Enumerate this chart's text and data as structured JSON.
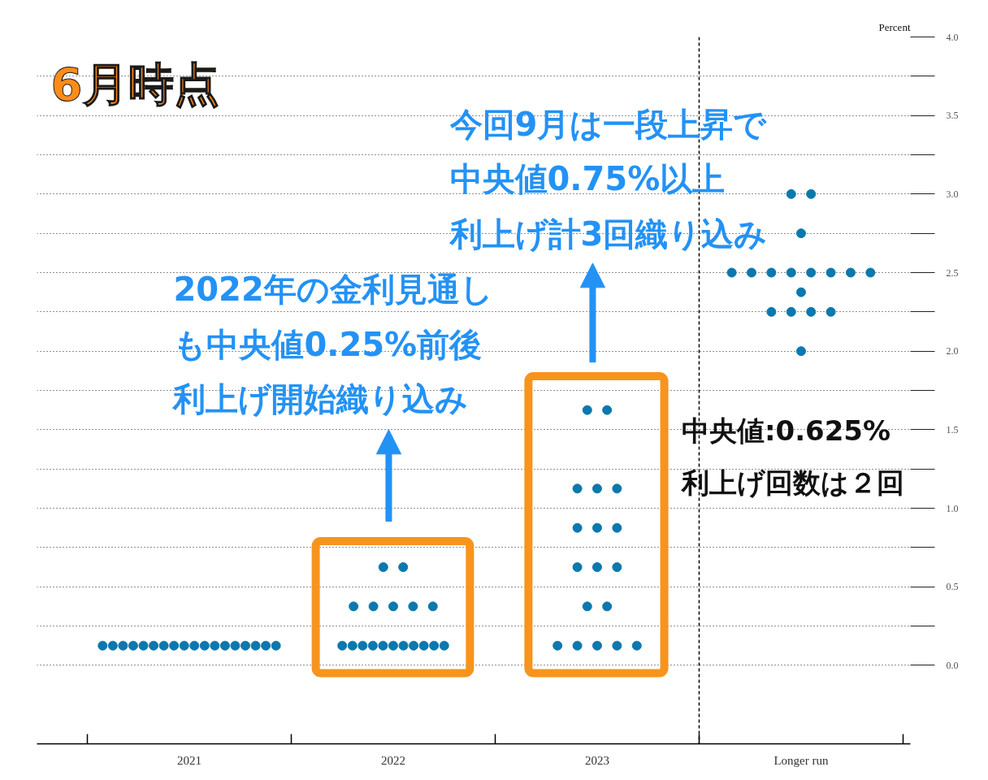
{
  "chart_data": {
    "type": "scatter",
    "annotations": [
      "6月時点",
      "2022年の金利見通しも中央値0.25%前後利上げ開始織り込み",
      "今回9月は一段上昇で中央値0.75%以上利上げ計3回織り込み",
      "中央値:0.625%利上げ回数は２回"
    ],
    "ylabel": "Percent",
    "categories": [
      "2021",
      "2022",
      "2023",
      "Longer run"
    ],
    "series": [
      {
        "color": "#0b78ae",
        "values": [
          0.125,
          0.125,
          0.125,
          2.0
        ]
      },
      {
        "color": "#0b78ae",
        "values": [
          0.125,
          0.125,
          0.125,
          2.25
        ]
      },
      {
        "color": "#0b78ae",
        "values": [
          0.125,
          0.125,
          0.125,
          2.25
        ]
      },
      {
        "color": "#0b78ae",
        "values": [
          0.125,
          0.125,
          0.125,
          2.25
        ]
      },
      {
        "color": "#0b78ae",
        "values": [
          0.125,
          0.125,
          0.125,
          2.25
        ]
      },
      {
        "color": "#0b78ae",
        "values": [
          0.125,
          0.125,
          0.375,
          2.375
        ]
      },
      {
        "color": "#0b78ae",
        "values": [
          0.125,
          0.125,
          0.375,
          2.5
        ]
      },
      {
        "color": "#0b78ae",
        "values": [
          0.125,
          0.125,
          0.625,
          2.5
        ]
      },
      {
        "color": "#0b78ae",
        "values": [
          0.125,
          0.125,
          0.625,
          2.5
        ]
      },
      {
        "color": "#0b78ae",
        "values": [
          0.125,
          0.125,
          0.625,
          2.5
        ]
      },
      {
        "color": "#0b78ae",
        "values": [
          0.125,
          0.125,
          0.875,
          2.5
        ]
      },
      {
        "color": "#0b78ae",
        "values": [
          0.125,
          0.375,
          0.875,
          2.5
        ]
      },
      {
        "color": "#0b78ae",
        "values": [
          0.125,
          0.375,
          0.875,
          2.5
        ]
      },
      {
        "color": "#0b78ae",
        "values": [
          0.125,
          0.375,
          1.125,
          2.5
        ]
      },
      {
        "color": "#0b78ae",
        "values": [
          0.125,
          0.375,
          1.125,
          2.75
        ]
      },
      {
        "color": "#0b78ae",
        "values": [
          0.125,
          0.375,
          1.125,
          3.0
        ]
      },
      {
        "color": "#0b78ae",
        "values": [
          0.125,
          0.625,
          1.625,
          3.0
        ]
      },
      {
        "color": "#0b78ae",
        "values": [
          0.125,
          0.625,
          1.625,
          null
        ]
      }
    ],
    "ylim": [
      -0.5,
      4.0
    ],
    "yticks": [
      {
        "value": 0,
        "label": "0.0"
      },
      {
        "value": 0.25,
        "label": null
      },
      0.5,
      {
        "value": 0.75,
        "label": null
      },
      {
        "value": 1,
        "label": "1.0"
      },
      {
        "value": 1.25,
        "label": null
      },
      1.5,
      {
        "value": 1.75,
        "label": null
      },
      {
        "value": 2,
        "label": "2.0"
      },
      {
        "value": 2.25,
        "label": null
      },
      2.5,
      {
        "value": 2.75,
        "label": null
      },
      {
        "value": 3,
        "label": "3.0"
      },
      {
        "value": 3.25,
        "label": null
      },
      3.5,
      {
        "value": 3.75,
        "label": null
      },
      {
        "value": 4,
        "label": "4.0"
      }
    ],
    "grid": "y",
    "marker": "circle"
  }
}
